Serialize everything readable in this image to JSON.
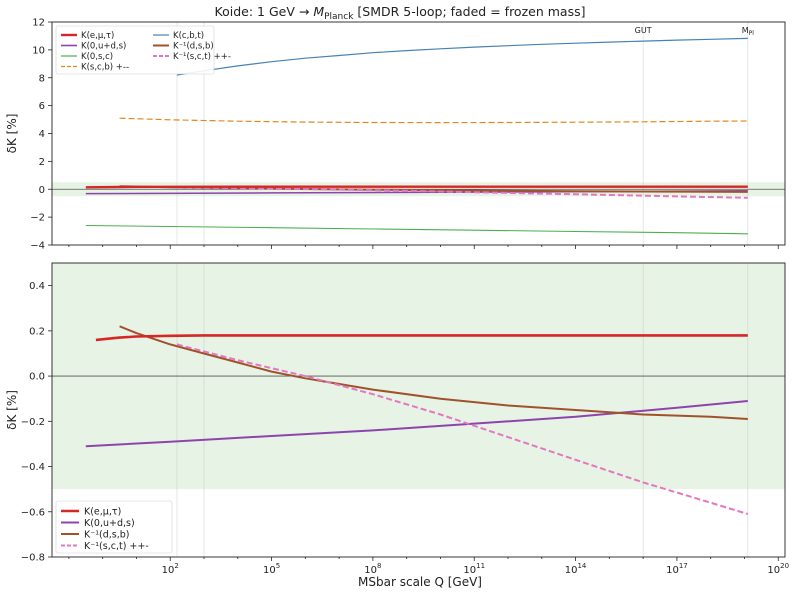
{
  "chart_data": {
    "type": "line",
    "title_prefix": "Koide: 1 GeV → ",
    "title_m": "M",
    "title_sub": "Planck",
    "title_suffix": " [SMDR 5-loop; faded = frozen mass]",
    "xlabel": "MSbar scale Q  [GeV]",
    "x_scale": "log",
    "x_ticks": [
      {
        "base": "10",
        "exp": "2",
        "exponent": 2
      },
      {
        "base": "10",
        "exp": "5",
        "exponent": 5
      },
      {
        "base": "10",
        "exp": "8",
        "exponent": 8
      },
      {
        "base": "10",
        "exp": "11",
        "exponent": 11
      },
      {
        "base": "10",
        "exp": "14",
        "exponent": 14
      },
      {
        "base": "10",
        "exp": "17",
        "exponent": 17
      },
      {
        "base": "10",
        "exp": "20",
        "exponent": 20
      }
    ],
    "xlim_log10": [
      -1.5,
      20.2
    ],
    "markers": [
      {
        "label": "GUT",
        "log10_q": 16.0
      },
      {
        "label": "M",
        "sub": "Pl",
        "log10_q": 19.1
      }
    ],
    "reference_lines_log10_q": [
      2.2,
      3.0
    ],
    "panels": [
      {
        "ylabel": "δK  [%]",
        "ylim": [
          -4,
          12
        ],
        "yticks": [
          "−4",
          "−2",
          "0",
          "2",
          "4",
          "6",
          "8",
          "10",
          "12"
        ],
        "ytick_values": [
          -4,
          -2,
          0,
          2,
          4,
          6,
          8,
          10,
          12
        ],
        "band": [
          -0.5,
          0.5
        ],
        "legend_position": "top-left",
        "legend": [
          {
            "label": "K(e,μ,τ)",
            "color": "#d62728",
            "style": "solid",
            "width": 2.4
          },
          {
            "label": "K(c,b,t)",
            "color": "#4682b4",
            "style": "solid",
            "width": 1.2
          },
          {
            "label": "K(0,u+d,s)",
            "color": "#8e44ad",
            "style": "solid",
            "width": 1.6
          },
          {
            "label": "K⁻¹(d,s,b)",
            "color": "#a0522d",
            "style": "solid",
            "width": 2.0
          },
          {
            "label": "K(0,s,c)",
            "color": "#4caf50",
            "style": "solid",
            "width": 1.2
          },
          {
            "label": "K⁻¹(s,c,t) ++-",
            "color": "#e377c2",
            "style": "dashed",
            "width": 2.0
          },
          {
            "label": "K(s,c,b) +--",
            "color": "#e08a1e",
            "style": "dashed",
            "width": 1.2
          }
        ],
        "series": [
          {
            "name": "K(c,b,t)",
            "color": "#4682b4",
            "style": "solid",
            "width": 1.2,
            "x": [
              2.2,
              3,
              4,
              5,
              6,
              7,
              8,
              9,
              10,
              11,
              12,
              13,
              14,
              15,
              16,
              17,
              18,
              19.1
            ],
            "y": [
              8.2,
              8.5,
              8.85,
              9.15,
              9.4,
              9.6,
              9.8,
              9.95,
              10.08,
              10.2,
              10.3,
              10.4,
              10.48,
              10.56,
              10.63,
              10.7,
              10.76,
              10.82
            ]
          },
          {
            "name": "K(s,c,b) +--",
            "color": "#e08a1e",
            "style": "dashed",
            "width": 1.2,
            "x": [
              0.5,
              2,
              4,
              6,
              8,
              10,
              12,
              14,
              16,
              18,
              19.1
            ],
            "y": [
              5.1,
              4.98,
              4.88,
              4.82,
              4.79,
              4.78,
              4.79,
              4.81,
              4.84,
              4.88,
              4.9
            ]
          },
          {
            "name": "K(0,s,c)",
            "color": "#4caf50",
            "style": "solid",
            "width": 1.1,
            "x": [
              -0.5,
              2,
              5,
              8,
              11,
              14,
              17,
              19.1
            ],
            "y": [
              -2.6,
              -2.67,
              -2.76,
              -2.85,
              -2.94,
              -3.03,
              -3.12,
              -3.2
            ]
          },
          {
            "name": "K(0,u+d,s)",
            "color": "#8e44ad",
            "style": "solid",
            "width": 1.5,
            "x": [
              -0.5,
              5,
              10,
              15,
              19.1
            ],
            "y": [
              -0.31,
              -0.26,
              -0.22,
              -0.16,
              -0.11
            ]
          },
          {
            "name": "K⁻¹(d,s,b)",
            "color": "#a0522d",
            "style": "solid",
            "width": 2.0,
            "x": [
              0.5,
              2,
              4,
              6,
              8,
              10,
              12,
              14,
              16,
              19.1
            ],
            "y": [
              0.22,
              0.14,
              0.08,
              0.02,
              -0.03,
              -0.07,
              -0.11,
              -0.14,
              -0.16,
              -0.19
            ]
          },
          {
            "name": "K⁻¹(s,c,t) ++-",
            "color": "#e377c2",
            "style": "dashed",
            "width": 2.0,
            "x": [
              2.2,
              4,
              6,
              8,
              10,
              12,
              14,
              16,
              19.1
            ],
            "y": [
              0.14,
              0.08,
              0.01,
              -0.07,
              -0.16,
              -0.26,
              -0.36,
              -0.46,
              -0.61
            ]
          },
          {
            "name": "K(e,μ,τ)",
            "color": "#d62728",
            "style": "solid",
            "width": 2.4,
            "x": [
              -0.5,
              0.5,
              2,
              4,
              7,
              10,
              14,
              19.1
            ],
            "y": [
              0.14,
              0.16,
              0.175,
              0.18,
              0.18,
              0.18,
              0.18,
              0.18
            ]
          }
        ]
      },
      {
        "ylabel": "δK  [%]",
        "ylim": [
          -0.8,
          0.5
        ],
        "yticks": [
          "−0.8",
          "−0.6",
          "−0.4",
          "−0.2",
          "0.0",
          "0.2",
          "0.4"
        ],
        "ytick_values": [
          -0.8,
          -0.6,
          -0.4,
          -0.2,
          0.0,
          0.2,
          0.4
        ],
        "band": [
          -0.5,
          0.5
        ],
        "legend_position": "bottom-left",
        "legend": [
          {
            "label": "K(e,μ,τ)",
            "color": "#d62728",
            "style": "solid",
            "width": 2.4
          },
          {
            "label": "K(0,u+d,s)",
            "color": "#8e44ad",
            "style": "solid",
            "width": 2.0
          },
          {
            "label": "K⁻¹(d,s,b)",
            "color": "#a0522d",
            "style": "solid",
            "width": 2.0
          },
          {
            "label": "K⁻¹(s,c,t) ++-",
            "color": "#e377c2",
            "style": "dashed",
            "width": 2.0
          }
        ],
        "series": [
          {
            "name": "K(0,u+d,s)",
            "color": "#8e44ad",
            "style": "solid",
            "width": 2.0,
            "x": [
              -0.5,
              2,
              5,
              8,
              11,
              14,
              17,
              19.1
            ],
            "y": [
              -0.31,
              -0.29,
              -0.265,
              -0.24,
              -0.21,
              -0.18,
              -0.14,
              -0.11
            ]
          },
          {
            "name": "K⁻¹(d,s,b)",
            "color": "#a0522d",
            "style": "solid",
            "width": 2.0,
            "x": [
              0.5,
              1,
              2,
              3,
              4,
              5,
              6,
              8,
              10,
              12,
              14,
              16,
              18,
              19.1
            ],
            "y": [
              0.22,
              0.19,
              0.14,
              0.1,
              0.06,
              0.02,
              -0.01,
              -0.06,
              -0.1,
              -0.13,
              -0.15,
              -0.17,
              -0.18,
              -0.19
            ]
          },
          {
            "name": "K⁻¹(s,c,t) ++-",
            "color": "#e377c2",
            "style": "dashed",
            "width": 2.0,
            "x": [
              2.2,
              4,
              6,
              8,
              10,
              12,
              14,
              16,
              18,
              19.1
            ],
            "y": [
              0.14,
              0.07,
              0.0,
              -0.08,
              -0.17,
              -0.27,
              -0.37,
              -0.47,
              -0.56,
              -0.61
            ]
          },
          {
            "name": "K(e,μ,τ)",
            "color": "#d62728",
            "style": "solid",
            "width": 2.6,
            "x": [
              -0.2,
              0.5,
              1,
              2,
              3,
              5,
              8,
              12,
              16,
              19.1
            ],
            "y": [
              0.16,
              0.17,
              0.175,
              0.178,
              0.18,
              0.18,
              0.18,
              0.18,
              0.18,
              0.18
            ]
          }
        ]
      }
    ]
  }
}
